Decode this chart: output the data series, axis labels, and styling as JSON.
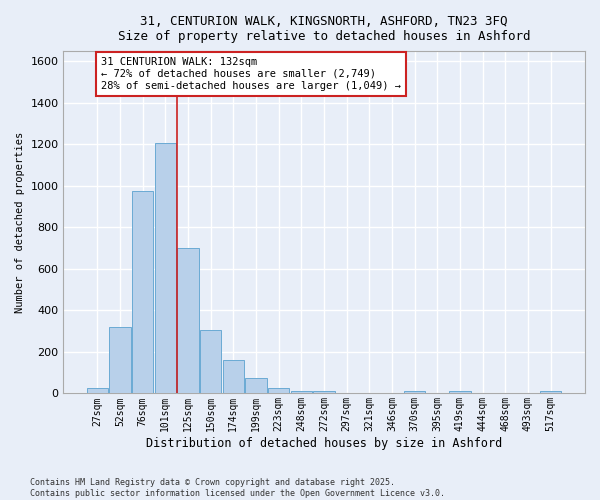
{
  "title_line1": "31, CENTURION WALK, KINGSNORTH, ASHFORD, TN23 3FQ",
  "title_line2": "Size of property relative to detached houses in Ashford",
  "xlabel": "Distribution of detached houses by size in Ashford",
  "ylabel": "Number of detached properties",
  "categories": [
    "27sqm",
    "52sqm",
    "76sqm",
    "101sqm",
    "125sqm",
    "150sqm",
    "174sqm",
    "199sqm",
    "223sqm",
    "248sqm",
    "272sqm",
    "297sqm",
    "321sqm",
    "346sqm",
    "370sqm",
    "395sqm",
    "419sqm",
    "444sqm",
    "468sqm",
    "493sqm",
    "517sqm"
  ],
  "values": [
    25,
    320,
    975,
    1205,
    700,
    305,
    160,
    75,
    28,
    12,
    10,
    0,
    0,
    0,
    10,
    0,
    10,
    0,
    0,
    0,
    10
  ],
  "bar_color": "#b8d0ea",
  "bar_edge_color": "#6aaad4",
  "bg_color": "#e8eef8",
  "grid_color": "#d8dde8",
  "vline_x": 3.5,
  "vline_color": "#cc2222",
  "annotation_text": "31 CENTURION WALK: 132sqm\n← 72% of detached houses are smaller (2,749)\n28% of semi-detached houses are larger (1,049) →",
  "ylim": [
    0,
    1650
  ],
  "yticks": [
    0,
    200,
    400,
    600,
    800,
    1000,
    1200,
    1400,
    1600
  ],
  "footer_line1": "Contains HM Land Registry data © Crown copyright and database right 2025.",
  "footer_line2": "Contains public sector information licensed under the Open Government Licence v3.0.",
  "figsize": [
    6.0,
    5.0
  ],
  "dpi": 100
}
